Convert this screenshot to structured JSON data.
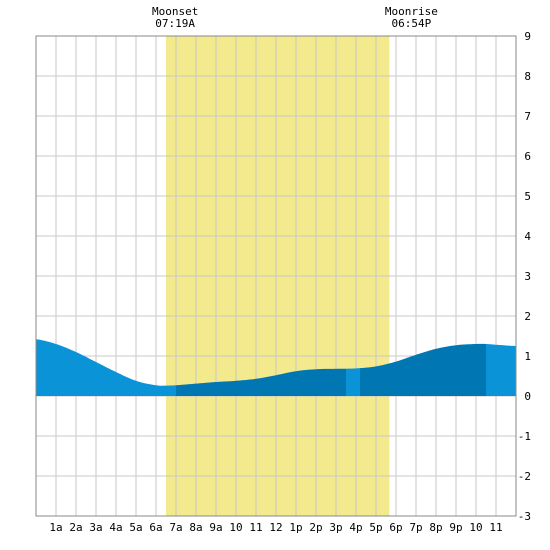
{
  "colors": {
    "background": "#ffffff",
    "grid": "#c8c8c8",
    "frame": "#888888",
    "daylight": "#f2ea8c",
    "tide_light": "#0b93d8",
    "tide_dark": "#0077b3"
  },
  "moon": {
    "moonset": {
      "label": "Moonset",
      "time": "07:19A"
    },
    "moonrise": {
      "label": "Moonrise",
      "time": "06:54P"
    }
  },
  "chart_data": {
    "type": "area",
    "title": "",
    "xlabel": "",
    "ylabel": "",
    "xlim": [
      0,
      24
    ],
    "ylim": [
      -3,
      9
    ],
    "grid": true,
    "daylight_hours": [
      6.5,
      17.67
    ],
    "shade_segments": [
      {
        "from": 0,
        "to": 7,
        "shade": "light"
      },
      {
        "from": 7,
        "to": 15.5,
        "shade": "dark"
      },
      {
        "from": 15.5,
        "to": 16.2,
        "shade": "light"
      },
      {
        "from": 16.2,
        "to": 22.5,
        "shade": "dark"
      },
      {
        "from": 22.5,
        "to": 24,
        "shade": "light"
      }
    ],
    "x_tick_labels": [
      "1a",
      "2a",
      "3a",
      "4a",
      "5a",
      "6a",
      "7a",
      "8a",
      "9a",
      "10",
      "11",
      "12",
      "1p",
      "2p",
      "3p",
      "4p",
      "5p",
      "6p",
      "7p",
      "8p",
      "9p",
      "10",
      "11"
    ],
    "y_tick_labels": [
      "9",
      "8",
      "7",
      "6",
      "5",
      "4",
      "3",
      "2",
      "1",
      "0",
      "-1",
      "-2",
      "-3"
    ],
    "series": [
      {
        "x": [
          0,
          1,
          2,
          3,
          4,
          5,
          6,
          6.5,
          7,
          8,
          9,
          10,
          11,
          12,
          13,
          14,
          15,
          16,
          17,
          18,
          19,
          20,
          21,
          22,
          22.5,
          23,
          24
        ],
        "y": [
          1.42,
          1.3,
          1.1,
          0.85,
          0.6,
          0.38,
          0.27,
          0.26,
          0.27,
          0.31,
          0.35,
          0.38,
          0.43,
          0.52,
          0.62,
          0.67,
          0.68,
          0.69,
          0.74,
          0.86,
          1.03,
          1.18,
          1.27,
          1.3,
          1.3,
          1.28,
          1.25
        ]
      }
    ]
  }
}
